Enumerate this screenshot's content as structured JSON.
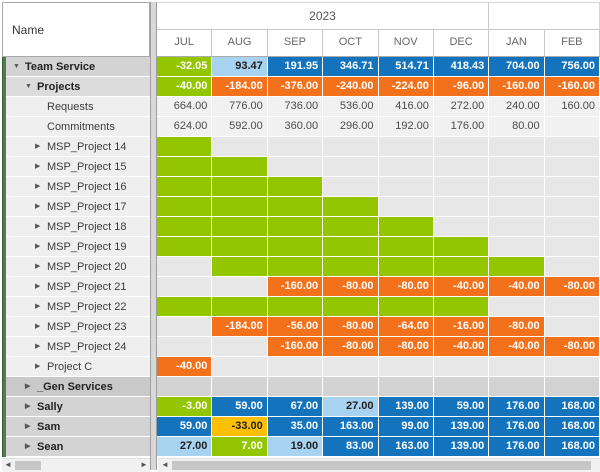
{
  "header": {
    "name_label": "Name",
    "year_label": "2023",
    "year_span_months": 6,
    "months": [
      "JUL",
      "AUG",
      "SEP",
      "OCT",
      "NOV",
      "DEC",
      "JAN",
      "FEB"
    ]
  },
  "icons": {
    "collapse_arrow": "▼",
    "expand_arrow": "▶",
    "scroll_left": "◄",
    "scroll_right": "►"
  },
  "palette": {
    "positive_blue": "#1373BD",
    "slight_positive_lightblue": "#A8D3F0",
    "capacity_green": "#94C600",
    "negative_orange": "#F4711C",
    "warning_yellow": "#FFC003",
    "group_gray": "#D2D2D2"
  },
  "rows": [
    {
      "label": "Team Service",
      "level": 0,
      "arrow": "expanded",
      "bold": true,
      "style": "group",
      "cells": [
        {
          "value": "-32.05",
          "color": "green"
        },
        {
          "value": "93.47",
          "color": "lightblue"
        },
        {
          "value": "191.95",
          "color": "blue"
        },
        {
          "value": "346.71",
          "color": "blue"
        },
        {
          "value": "514.71",
          "color": "blue"
        },
        {
          "value": "418.43",
          "color": "blue"
        },
        {
          "value": "704.00",
          "color": "blue"
        },
        {
          "value": "756.00",
          "color": "blue"
        }
      ]
    },
    {
      "label": "Projects",
      "level": 1,
      "arrow": "expanded",
      "bold": true,
      "style": "subgroup",
      "cells": [
        {
          "value": "-40.00",
          "color": "green"
        },
        {
          "value": "-184.00",
          "color": "orange"
        },
        {
          "value": "-376.00",
          "color": "orange"
        },
        {
          "value": "-240.00",
          "color": "orange"
        },
        {
          "value": "-224.00",
          "color": "orange"
        },
        {
          "value": "-96.00",
          "color": "orange"
        },
        {
          "value": "-160.00",
          "color": "orange"
        },
        {
          "value": "-160.00",
          "color": "orange"
        }
      ]
    },
    {
      "label": "Requests",
      "level": 2,
      "arrow": "none",
      "bold": false,
      "style": "item",
      "cells": [
        {
          "value": "664.00",
          "color": "plain"
        },
        {
          "value": "776.00",
          "color": "plain"
        },
        {
          "value": "736.00",
          "color": "plain"
        },
        {
          "value": "536.00",
          "color": "plain"
        },
        {
          "value": "416.00",
          "color": "plain"
        },
        {
          "value": "272.00",
          "color": "plain"
        },
        {
          "value": "240.00",
          "color": "plain"
        },
        {
          "value": "160.00",
          "color": "plain"
        }
      ]
    },
    {
      "label": "Commitments",
      "level": 2,
      "arrow": "none",
      "bold": false,
      "style": "item",
      "cells": [
        {
          "value": "624.00",
          "color": "plain"
        },
        {
          "value": "592.00",
          "color": "plain"
        },
        {
          "value": "360.00",
          "color": "plain"
        },
        {
          "value": "296.00",
          "color": "plain"
        },
        {
          "value": "192.00",
          "color": "plain"
        },
        {
          "value": "176.00",
          "color": "plain"
        },
        {
          "value": "80.00",
          "color": "plain"
        },
        {
          "value": "",
          "color": "plain"
        }
      ]
    },
    {
      "label": "MSP_Project 14",
      "level": 2,
      "arrow": "collapsed",
      "bold": false,
      "style": "item",
      "cells": [
        {
          "value": "",
          "color": "green"
        },
        {
          "value": "",
          "color": "empty"
        },
        {
          "value": "",
          "color": "empty"
        },
        {
          "value": "",
          "color": "empty"
        },
        {
          "value": "",
          "color": "empty"
        },
        {
          "value": "",
          "color": "empty"
        },
        {
          "value": "",
          "color": "empty"
        },
        {
          "value": "",
          "color": "empty"
        }
      ]
    },
    {
      "label": "MSP_Project 15",
      "level": 2,
      "arrow": "collapsed",
      "bold": false,
      "style": "item",
      "cells": [
        {
          "value": "",
          "color": "green"
        },
        {
          "value": "",
          "color": "green"
        },
        {
          "value": "",
          "color": "empty"
        },
        {
          "value": "",
          "color": "empty"
        },
        {
          "value": "",
          "color": "empty"
        },
        {
          "value": "",
          "color": "empty"
        },
        {
          "value": "",
          "color": "empty"
        },
        {
          "value": "",
          "color": "empty"
        }
      ]
    },
    {
      "label": "MSP_Project 16",
      "level": 2,
      "arrow": "collapsed",
      "bold": false,
      "style": "item",
      "cells": [
        {
          "value": "",
          "color": "green"
        },
        {
          "value": "",
          "color": "green"
        },
        {
          "value": "",
          "color": "green"
        },
        {
          "value": "",
          "color": "empty"
        },
        {
          "value": "",
          "color": "empty"
        },
        {
          "value": "",
          "color": "empty"
        },
        {
          "value": "",
          "color": "empty"
        },
        {
          "value": "",
          "color": "empty"
        }
      ]
    },
    {
      "label": "MSP_Project 17",
      "level": 2,
      "arrow": "collapsed",
      "bold": false,
      "style": "item",
      "cells": [
        {
          "value": "",
          "color": "green"
        },
        {
          "value": "",
          "color": "green"
        },
        {
          "value": "",
          "color": "green"
        },
        {
          "value": "",
          "color": "green"
        },
        {
          "value": "",
          "color": "empty"
        },
        {
          "value": "",
          "color": "empty"
        },
        {
          "value": "",
          "color": "empty"
        },
        {
          "value": "",
          "color": "empty"
        }
      ]
    },
    {
      "label": "MSP_Project 18",
      "level": 2,
      "arrow": "collapsed",
      "bold": false,
      "style": "item",
      "cells": [
        {
          "value": "",
          "color": "green"
        },
        {
          "value": "",
          "color": "green"
        },
        {
          "value": "",
          "color": "green"
        },
        {
          "value": "",
          "color": "green"
        },
        {
          "value": "",
          "color": "green"
        },
        {
          "value": "",
          "color": "empty"
        },
        {
          "value": "",
          "color": "empty"
        },
        {
          "value": "",
          "color": "empty"
        }
      ]
    },
    {
      "label": "MSP_Project 19",
      "level": 2,
      "arrow": "collapsed",
      "bold": false,
      "style": "item",
      "cells": [
        {
          "value": "",
          "color": "green"
        },
        {
          "value": "",
          "color": "green"
        },
        {
          "value": "",
          "color": "green"
        },
        {
          "value": "",
          "color": "green"
        },
        {
          "value": "",
          "color": "green"
        },
        {
          "value": "",
          "color": "green"
        },
        {
          "value": "",
          "color": "empty"
        },
        {
          "value": "",
          "color": "empty"
        }
      ]
    },
    {
      "label": "MSP_Project 20",
      "level": 2,
      "arrow": "collapsed",
      "bold": false,
      "style": "item",
      "cells": [
        {
          "value": "",
          "color": "empty"
        },
        {
          "value": "",
          "color": "green"
        },
        {
          "value": "",
          "color": "green"
        },
        {
          "value": "",
          "color": "green"
        },
        {
          "value": "",
          "color": "green"
        },
        {
          "value": "",
          "color": "green"
        },
        {
          "value": "",
          "color": "green"
        },
        {
          "value": "",
          "color": "empty"
        }
      ]
    },
    {
      "label": "MSP_Project 21",
      "level": 2,
      "arrow": "collapsed",
      "bold": false,
      "style": "item",
      "cells": [
        {
          "value": "",
          "color": "empty"
        },
        {
          "value": "",
          "color": "empty"
        },
        {
          "value": "-160.00",
          "color": "orange"
        },
        {
          "value": "-80.00",
          "color": "orange"
        },
        {
          "value": "-80.00",
          "color": "orange"
        },
        {
          "value": "-40.00",
          "color": "orange"
        },
        {
          "value": "-40.00",
          "color": "orange"
        },
        {
          "value": "-80.00",
          "color": "orange"
        }
      ]
    },
    {
      "label": "MSP_Project 22",
      "level": 2,
      "arrow": "collapsed",
      "bold": false,
      "style": "item",
      "cells": [
        {
          "value": "",
          "color": "green"
        },
        {
          "value": "",
          "color": "green"
        },
        {
          "value": "",
          "color": "green"
        },
        {
          "value": "",
          "color": "green"
        },
        {
          "value": "",
          "color": "green"
        },
        {
          "value": "",
          "color": "green"
        },
        {
          "value": "",
          "color": "empty"
        },
        {
          "value": "",
          "color": "empty"
        }
      ]
    },
    {
      "label": "MSP_Project 23",
      "level": 2,
      "arrow": "collapsed",
      "bold": false,
      "style": "item",
      "cells": [
        {
          "value": "",
          "color": "empty"
        },
        {
          "value": "-184.00",
          "color": "orange"
        },
        {
          "value": "-56.00",
          "color": "orange"
        },
        {
          "value": "-80.00",
          "color": "orange"
        },
        {
          "value": "-64.00",
          "color": "orange"
        },
        {
          "value": "-16.00",
          "color": "orange"
        },
        {
          "value": "-80.00",
          "color": "orange"
        },
        {
          "value": "",
          "color": "empty"
        }
      ]
    },
    {
      "label": "MSP_Project 24",
      "level": 2,
      "arrow": "collapsed",
      "bold": false,
      "style": "item",
      "cells": [
        {
          "value": "",
          "color": "empty"
        },
        {
          "value": "",
          "color": "empty"
        },
        {
          "value": "-160.00",
          "color": "orange"
        },
        {
          "value": "-80.00",
          "color": "orange"
        },
        {
          "value": "-80.00",
          "color": "orange"
        },
        {
          "value": "-40.00",
          "color": "orange"
        },
        {
          "value": "-40.00",
          "color": "orange"
        },
        {
          "value": "-80.00",
          "color": "orange"
        }
      ]
    },
    {
      "label": "Project C",
      "level": 2,
      "arrow": "collapsed",
      "bold": false,
      "style": "item",
      "cells": [
        {
          "value": "-40.00",
          "color": "orange"
        },
        {
          "value": "",
          "color": "empty"
        },
        {
          "value": "",
          "color": "empty"
        },
        {
          "value": "",
          "color": "empty"
        },
        {
          "value": "",
          "color": "empty"
        },
        {
          "value": "",
          "color": "empty"
        },
        {
          "value": "",
          "color": "empty"
        },
        {
          "value": "",
          "color": "empty"
        }
      ]
    },
    {
      "label": "_Gen Services",
      "level": 1,
      "arrow": "collapsed",
      "bold": true,
      "style": "dark",
      "cells": [
        {
          "value": "",
          "color": "gray"
        },
        {
          "value": "",
          "color": "gray"
        },
        {
          "value": "",
          "color": "gray"
        },
        {
          "value": "",
          "color": "gray"
        },
        {
          "value": "",
          "color": "gray"
        },
        {
          "value": "",
          "color": "gray"
        },
        {
          "value": "",
          "color": "gray"
        },
        {
          "value": "",
          "color": "gray"
        }
      ]
    },
    {
      "label": "Sally",
      "level": 1,
      "arrow": "collapsed",
      "bold": true,
      "style": "group",
      "cells": [
        {
          "value": "-3.00",
          "color": "green"
        },
        {
          "value": "59.00",
          "color": "blue"
        },
        {
          "value": "67.00",
          "color": "blue"
        },
        {
          "value": "27.00",
          "color": "lightblue"
        },
        {
          "value": "139.00",
          "color": "blue"
        },
        {
          "value": "59.00",
          "color": "blue"
        },
        {
          "value": "176.00",
          "color": "blue"
        },
        {
          "value": "168.00",
          "color": "blue"
        }
      ]
    },
    {
      "label": "Sam",
      "level": 1,
      "arrow": "collapsed",
      "bold": true,
      "style": "group",
      "cells": [
        {
          "value": "59.00",
          "color": "blue"
        },
        {
          "value": "-33.00",
          "color": "yellow"
        },
        {
          "value": "35.00",
          "color": "blue"
        },
        {
          "value": "163.00",
          "color": "blue"
        },
        {
          "value": "99.00",
          "color": "blue"
        },
        {
          "value": "139.00",
          "color": "blue"
        },
        {
          "value": "176.00",
          "color": "blue"
        },
        {
          "value": "168.00",
          "color": "blue"
        }
      ]
    },
    {
      "label": "Sean",
      "level": 1,
      "arrow": "collapsed",
      "bold": true,
      "style": "group",
      "cells": [
        {
          "value": "27.00",
          "color": "lightblue"
        },
        {
          "value": "7.00",
          "color": "green"
        },
        {
          "value": "19.00",
          "color": "lightblue"
        },
        {
          "value": "83.00",
          "color": "blue"
        },
        {
          "value": "163.00",
          "color": "blue"
        },
        {
          "value": "139.00",
          "color": "blue"
        },
        {
          "value": "176.00",
          "color": "blue"
        },
        {
          "value": "168.00",
          "color": "blue"
        }
      ]
    }
  ]
}
